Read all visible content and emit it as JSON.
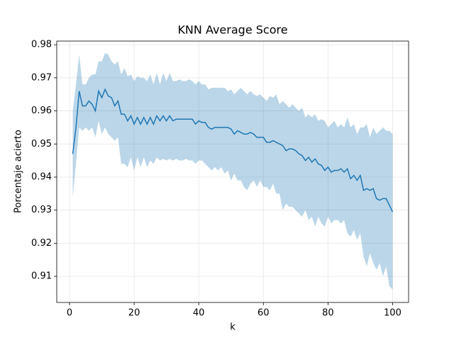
{
  "chart_data": {
    "type": "line",
    "title": "KNN Average Score",
    "x_label": "k",
    "y_label": "Porcentaje acierto",
    "x": [
      1,
      2,
      3,
      4,
      5,
      6,
      7,
      8,
      9,
      10,
      11,
      12,
      13,
      14,
      15,
      16,
      17,
      18,
      19,
      20,
      21,
      22,
      23,
      24,
      25,
      26,
      27,
      28,
      29,
      30,
      31,
      32,
      33,
      34,
      35,
      36,
      37,
      38,
      39,
      40,
      41,
      42,
      43,
      44,
      45,
      46,
      47,
      48,
      49,
      50,
      51,
      52,
      53,
      54,
      55,
      56,
      57,
      58,
      59,
      60,
      61,
      62,
      63,
      64,
      65,
      66,
      67,
      68,
      69,
      70,
      71,
      72,
      73,
      74,
      75,
      76,
      77,
      78,
      79,
      80,
      81,
      82,
      83,
      84,
      85,
      86,
      87,
      88,
      89,
      90,
      91,
      92,
      93,
      94,
      95,
      96,
      97,
      98,
      99,
      100
    ],
    "values": [
      0.947,
      0.955,
      0.966,
      0.9615,
      0.9615,
      0.963,
      0.962,
      0.96,
      0.966,
      0.964,
      0.9665,
      0.9645,
      0.964,
      0.9615,
      0.963,
      0.959,
      0.959,
      0.957,
      0.9585,
      0.956,
      0.958,
      0.956,
      0.958,
      0.956,
      0.958,
      0.956,
      0.9585,
      0.957,
      0.9585,
      0.957,
      0.9585,
      0.957,
      0.9575,
      0.9575,
      0.9575,
      0.9575,
      0.9575,
      0.9575,
      0.956,
      0.957,
      0.9565,
      0.9565,
      0.955,
      0.9545,
      0.955,
      0.955,
      0.955,
      0.955,
      0.955,
      0.9545,
      0.953,
      0.954,
      0.9535,
      0.953,
      0.953,
      0.9535,
      0.953,
      0.952,
      0.952,
      0.952,
      0.9505,
      0.9505,
      0.951,
      0.9505,
      0.95,
      0.9495,
      0.948,
      0.9485,
      0.9485,
      0.948,
      0.947,
      0.9465,
      0.945,
      0.946,
      0.9445,
      0.9455,
      0.944,
      0.9435,
      0.942,
      0.943,
      0.9415,
      0.942,
      0.942,
      0.9425,
      0.9415,
      0.9425,
      0.9395,
      0.9405,
      0.939,
      0.9405,
      0.936,
      0.9365,
      0.936,
      0.9365,
      0.9335,
      0.933,
      0.9335,
      0.9335,
      0.9315,
      0.9295
    ],
    "upper": [
      0.96,
      0.968,
      0.977,
      0.968,
      0.968,
      0.97,
      0.971,
      0.971,
      0.975,
      0.975,
      0.9775,
      0.977,
      0.975,
      0.974,
      0.975,
      0.971,
      0.973,
      0.9705,
      0.971,
      0.969,
      0.9705,
      0.97,
      0.97,
      0.969,
      0.971,
      0.968,
      0.9715,
      0.968,
      0.9715,
      0.969,
      0.9715,
      0.969,
      0.969,
      0.9695,
      0.969,
      0.969,
      0.9695,
      0.969,
      0.968,
      0.969,
      0.968,
      0.968,
      0.9665,
      0.967,
      0.967,
      0.967,
      0.967,
      0.967,
      0.966,
      0.9665,
      0.965,
      0.966,
      0.967,
      0.966,
      0.965,
      0.966,
      0.965,
      0.9645,
      0.965,
      0.964,
      0.963,
      0.9645,
      0.964,
      0.965,
      0.962,
      0.963,
      0.962,
      0.961,
      0.962,
      0.961,
      0.96,
      0.961,
      0.958,
      0.959,
      0.958,
      0.959,
      0.957,
      0.9575,
      0.957,
      0.955,
      0.956,
      0.957,
      0.955,
      0.956,
      0.955,
      0.958,
      0.955,
      0.956,
      0.953,
      0.955,
      0.955,
      0.956,
      0.952,
      0.955,
      0.953,
      0.954,
      0.955,
      0.954,
      0.954,
      0.953
    ],
    "lower": [
      0.934,
      0.944,
      0.955,
      0.954,
      0.955,
      0.954,
      0.955,
      0.952,
      0.957,
      0.953,
      0.955,
      0.953,
      0.952,
      0.951,
      0.952,
      0.944,
      0.944,
      0.943,
      0.946,
      0.942,
      0.946,
      0.943,
      0.946,
      0.943,
      0.945,
      0.944,
      0.946,
      0.945,
      0.9455,
      0.945,
      0.9455,
      0.945,
      0.9455,
      0.945,
      0.945,
      0.9455,
      0.945,
      0.945,
      0.944,
      0.945,
      0.945,
      0.944,
      0.943,
      0.942,
      0.943,
      0.942,
      0.943,
      0.941,
      0.942,
      0.939,
      0.941,
      0.939,
      0.939,
      0.937,
      0.936,
      0.938,
      0.939,
      0.937,
      0.939,
      0.937,
      0.937,
      0.936,
      0.938,
      0.935,
      0.935,
      0.93,
      0.932,
      0.931,
      0.931,
      0.93,
      0.929,
      0.928,
      0.93,
      0.927,
      0.928,
      0.925,
      0.928,
      0.926,
      0.925,
      0.928,
      0.926,
      0.927,
      0.927,
      0.926,
      0.927,
      0.923,
      0.922,
      0.924,
      0.921,
      0.923,
      0.916,
      0.913,
      0.917,
      0.914,
      0.912,
      0.914,
      0.91,
      0.913,
      0.907,
      0.906
    ],
    "color": "#1f77b4",
    "band_opacity": 0.3,
    "xlim": [
      -3.95,
      104.95
    ],
    "xticks": [
      0,
      20,
      40,
      60,
      80,
      100
    ],
    "ylim": [
      0.9021,
      0.9811
    ],
    "yticks": [
      0.91,
      0.92,
      0.93,
      0.94,
      0.95,
      0.96,
      0.97,
      0.98
    ],
    "grid": true
  }
}
